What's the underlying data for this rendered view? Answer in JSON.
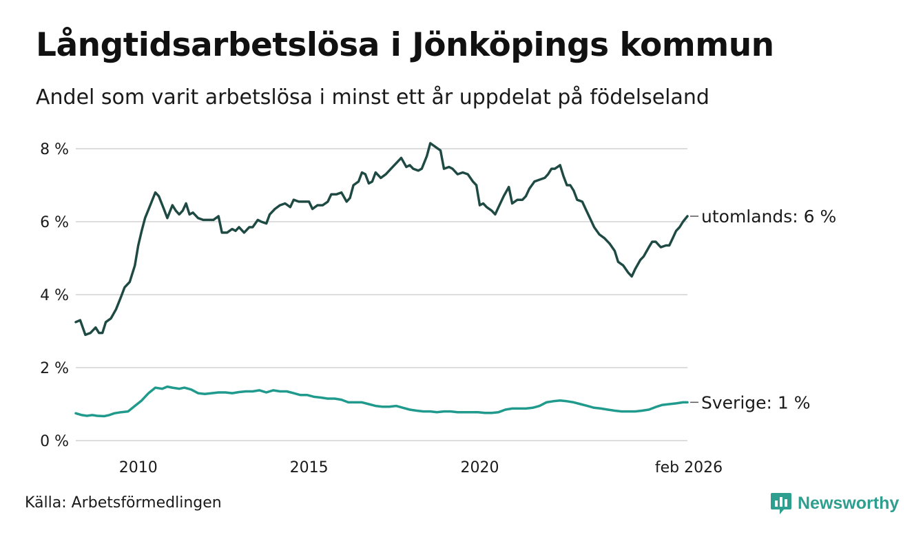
{
  "title": "Långtidsarbetslösa i Jönköpings kommun",
  "subtitle": "Andel som varit arbetslösa i minst ett år uppdelat på födelseland",
  "source": "Källa: Arbetsförmedlingen",
  "brand": "Newsworthy",
  "colors": {
    "utomlands": "#1f4a44",
    "sverige": "#1f9a8c",
    "grid": "#dddddd",
    "brand": "#2e9e8f"
  },
  "chart_data": {
    "type": "line",
    "title": "Långtidsarbetslösa i Jönköpings kommun",
    "xlabel": "",
    "ylabel": "",
    "xlim": [
      2008.17,
      2026.08
    ],
    "ylim": [
      0,
      8
    ],
    "y_ticks": [
      0,
      2,
      4,
      6,
      8
    ],
    "y_tick_labels": [
      "0 %",
      "2 %",
      "4 %",
      "6 %",
      "8 %"
    ],
    "x_ticks": [
      2010,
      2015,
      2020,
      2026.08
    ],
    "x_tick_labels": [
      "2010",
      "2015",
      "2020",
      "feb 2026"
    ],
    "grid": true,
    "series": [
      {
        "name": "utomlands",
        "end_label": "utomlands: 6 %",
        "points": [
          [
            2008.17,
            3.25
          ],
          [
            2008.3,
            3.3
          ],
          [
            2008.45,
            2.9
          ],
          [
            2008.6,
            2.95
          ],
          [
            2008.75,
            3.1
          ],
          [
            2008.85,
            2.95
          ],
          [
            2008.95,
            2.95
          ],
          [
            2009.05,
            3.25
          ],
          [
            2009.2,
            3.35
          ],
          [
            2009.35,
            3.6
          ],
          [
            2009.5,
            3.95
          ],
          [
            2009.6,
            4.2
          ],
          [
            2009.75,
            4.35
          ],
          [
            2009.9,
            4.8
          ],
          [
            2010.0,
            5.35
          ],
          [
            2010.1,
            5.75
          ],
          [
            2010.2,
            6.1
          ],
          [
            2010.35,
            6.45
          ],
          [
            2010.5,
            6.8
          ],
          [
            2010.6,
            6.7
          ],
          [
            2010.75,
            6.35
          ],
          [
            2010.85,
            6.1
          ],
          [
            2011.0,
            6.45
          ],
          [
            2011.1,
            6.3
          ],
          [
            2011.2,
            6.2
          ],
          [
            2011.3,
            6.3
          ],
          [
            2011.4,
            6.5
          ],
          [
            2011.5,
            6.2
          ],
          [
            2011.6,
            6.25
          ],
          [
            2011.75,
            6.1
          ],
          [
            2011.9,
            6.05
          ],
          [
            2012.0,
            6.05
          ],
          [
            2012.1,
            6.05
          ],
          [
            2012.2,
            6.05
          ],
          [
            2012.35,
            6.15
          ],
          [
            2012.45,
            5.7
          ],
          [
            2012.6,
            5.7
          ],
          [
            2012.75,
            5.8
          ],
          [
            2012.85,
            5.75
          ],
          [
            2012.95,
            5.85
          ],
          [
            2013.1,
            5.7
          ],
          [
            2013.25,
            5.85
          ],
          [
            2013.35,
            5.85
          ],
          [
            2013.5,
            6.05
          ],
          [
            2013.6,
            6.0
          ],
          [
            2013.75,
            5.95
          ],
          [
            2013.85,
            6.2
          ],
          [
            2014.0,
            6.35
          ],
          [
            2014.15,
            6.45
          ],
          [
            2014.3,
            6.5
          ],
          [
            2014.45,
            6.4
          ],
          [
            2014.55,
            6.6
          ],
          [
            2014.7,
            6.55
          ],
          [
            2014.85,
            6.55
          ],
          [
            2015.0,
            6.55
          ],
          [
            2015.1,
            6.35
          ],
          [
            2015.25,
            6.45
          ],
          [
            2015.4,
            6.45
          ],
          [
            2015.55,
            6.55
          ],
          [
            2015.65,
            6.75
          ],
          [
            2015.8,
            6.75
          ],
          [
            2015.95,
            6.8
          ],
          [
            2016.1,
            6.55
          ],
          [
            2016.2,
            6.65
          ],
          [
            2016.3,
            7.0
          ],
          [
            2016.45,
            7.1
          ],
          [
            2016.55,
            7.35
          ],
          [
            2016.65,
            7.3
          ],
          [
            2016.75,
            7.05
          ],
          [
            2016.85,
            7.1
          ],
          [
            2016.95,
            7.35
          ],
          [
            2017.1,
            7.2
          ],
          [
            2017.25,
            7.3
          ],
          [
            2017.4,
            7.45
          ],
          [
            2017.55,
            7.6
          ],
          [
            2017.7,
            7.75
          ],
          [
            2017.85,
            7.5
          ],
          [
            2017.95,
            7.55
          ],
          [
            2018.05,
            7.45
          ],
          [
            2018.2,
            7.4
          ],
          [
            2018.3,
            7.45
          ],
          [
            2018.45,
            7.8
          ],
          [
            2018.55,
            8.15
          ],
          [
            2018.7,
            8.05
          ],
          [
            2018.85,
            7.95
          ],
          [
            2018.95,
            7.45
          ],
          [
            2019.1,
            7.5
          ],
          [
            2019.2,
            7.45
          ],
          [
            2019.35,
            7.3
          ],
          [
            2019.5,
            7.35
          ],
          [
            2019.65,
            7.3
          ],
          [
            2019.8,
            7.1
          ],
          [
            2019.9,
            7.0
          ],
          [
            2020.0,
            6.45
          ],
          [
            2020.1,
            6.5
          ],
          [
            2020.2,
            6.4
          ],
          [
            2020.35,
            6.3
          ],
          [
            2020.45,
            6.2
          ],
          [
            2020.55,
            6.4
          ],
          [
            2020.7,
            6.7
          ],
          [
            2020.85,
            6.95
          ],
          [
            2020.95,
            6.5
          ],
          [
            2021.1,
            6.6
          ],
          [
            2021.25,
            6.6
          ],
          [
            2021.35,
            6.7
          ],
          [
            2021.45,
            6.9
          ],
          [
            2021.6,
            7.1
          ],
          [
            2021.75,
            7.15
          ],
          [
            2021.9,
            7.2
          ],
          [
            2022.0,
            7.3
          ],
          [
            2022.1,
            7.45
          ],
          [
            2022.2,
            7.45
          ],
          [
            2022.35,
            7.55
          ],
          [
            2022.45,
            7.25
          ],
          [
            2022.55,
            7.0
          ],
          [
            2022.65,
            7.0
          ],
          [
            2022.75,
            6.85
          ],
          [
            2022.85,
            6.6
          ],
          [
            2023.0,
            6.55
          ],
          [
            2023.1,
            6.35
          ],
          [
            2023.25,
            6.05
          ],
          [
            2023.35,
            5.85
          ],
          [
            2023.5,
            5.65
          ],
          [
            2023.65,
            5.55
          ],
          [
            2023.8,
            5.4
          ],
          [
            2023.95,
            5.2
          ],
          [
            2024.05,
            4.9
          ],
          [
            2024.2,
            4.8
          ],
          [
            2024.35,
            4.6
          ],
          [
            2024.45,
            4.5
          ],
          [
            2024.55,
            4.7
          ],
          [
            2024.7,
            4.95
          ],
          [
            2024.8,
            5.05
          ],
          [
            2024.95,
            5.3
          ],
          [
            2025.05,
            5.45
          ],
          [
            2025.15,
            5.45
          ],
          [
            2025.3,
            5.3
          ],
          [
            2025.45,
            5.35
          ],
          [
            2025.55,
            5.35
          ],
          [
            2025.65,
            5.55
          ],
          [
            2025.75,
            5.75
          ],
          [
            2025.85,
            5.85
          ],
          [
            2025.95,
            6.0
          ],
          [
            2026.08,
            6.15
          ]
        ]
      },
      {
        "name": "Sverige",
        "end_label": "Sverige: 1 %",
        "points": [
          [
            2008.17,
            0.75
          ],
          [
            2008.35,
            0.7
          ],
          [
            2008.5,
            0.68
          ],
          [
            2008.65,
            0.7
          ],
          [
            2008.8,
            0.68
          ],
          [
            2009.0,
            0.67
          ],
          [
            2009.15,
            0.7
          ],
          [
            2009.3,
            0.75
          ],
          [
            2009.5,
            0.78
          ],
          [
            2009.7,
            0.8
          ],
          [
            2009.9,
            0.95
          ],
          [
            2010.1,
            1.1
          ],
          [
            2010.3,
            1.3
          ],
          [
            2010.5,
            1.45
          ],
          [
            2010.7,
            1.42
          ],
          [
            2010.85,
            1.48
          ],
          [
            2011.0,
            1.45
          ],
          [
            2011.2,
            1.42
          ],
          [
            2011.35,
            1.45
          ],
          [
            2011.55,
            1.4
          ],
          [
            2011.75,
            1.3
          ],
          [
            2011.95,
            1.28
          ],
          [
            2012.15,
            1.3
          ],
          [
            2012.35,
            1.32
          ],
          [
            2012.55,
            1.32
          ],
          [
            2012.75,
            1.3
          ],
          [
            2012.95,
            1.33
          ],
          [
            2013.15,
            1.35
          ],
          [
            2013.35,
            1.35
          ],
          [
            2013.55,
            1.38
          ],
          [
            2013.75,
            1.32
          ],
          [
            2013.95,
            1.38
          ],
          [
            2014.15,
            1.35
          ],
          [
            2014.35,
            1.35
          ],
          [
            2014.55,
            1.3
          ],
          [
            2014.75,
            1.25
          ],
          [
            2014.95,
            1.25
          ],
          [
            2015.15,
            1.2
          ],
          [
            2015.35,
            1.18
          ],
          [
            2015.55,
            1.15
          ],
          [
            2015.75,
            1.15
          ],
          [
            2015.95,
            1.12
          ],
          [
            2016.15,
            1.05
          ],
          [
            2016.35,
            1.05
          ],
          [
            2016.55,
            1.05
          ],
          [
            2016.75,
            1.0
          ],
          [
            2016.95,
            0.95
          ],
          [
            2017.15,
            0.93
          ],
          [
            2017.35,
            0.93
          ],
          [
            2017.55,
            0.95
          ],
          [
            2017.75,
            0.9
          ],
          [
            2017.95,
            0.85
          ],
          [
            2018.15,
            0.82
          ],
          [
            2018.35,
            0.8
          ],
          [
            2018.55,
            0.8
          ],
          [
            2018.75,
            0.78
          ],
          [
            2018.95,
            0.8
          ],
          [
            2019.15,
            0.8
          ],
          [
            2019.35,
            0.78
          ],
          [
            2019.55,
            0.78
          ],
          [
            2019.75,
            0.78
          ],
          [
            2019.95,
            0.78
          ],
          [
            2020.15,
            0.76
          ],
          [
            2020.35,
            0.76
          ],
          [
            2020.55,
            0.78
          ],
          [
            2020.75,
            0.85
          ],
          [
            2020.95,
            0.88
          ],
          [
            2021.15,
            0.88
          ],
          [
            2021.35,
            0.88
          ],
          [
            2021.55,
            0.9
          ],
          [
            2021.75,
            0.95
          ],
          [
            2021.95,
            1.05
          ],
          [
            2022.15,
            1.08
          ],
          [
            2022.35,
            1.1
          ],
          [
            2022.55,
            1.08
          ],
          [
            2022.75,
            1.05
          ],
          [
            2022.95,
            1.0
          ],
          [
            2023.15,
            0.95
          ],
          [
            2023.35,
            0.9
          ],
          [
            2023.55,
            0.88
          ],
          [
            2023.75,
            0.85
          ],
          [
            2023.95,
            0.82
          ],
          [
            2024.15,
            0.8
          ],
          [
            2024.35,
            0.8
          ],
          [
            2024.55,
            0.8
          ],
          [
            2024.75,
            0.82
          ],
          [
            2024.95,
            0.85
          ],
          [
            2025.15,
            0.92
          ],
          [
            2025.35,
            0.98
          ],
          [
            2025.55,
            1.0
          ],
          [
            2025.75,
            1.02
          ],
          [
            2025.95,
            1.05
          ],
          [
            2026.08,
            1.05
          ]
        ]
      }
    ]
  }
}
